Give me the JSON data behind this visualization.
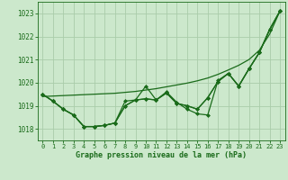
{
  "xlabel": "Graphe pression niveau de la mer (hPa)",
  "ylim": [
    1017.5,
    1023.5
  ],
  "xlim": [
    -0.5,
    23.5
  ],
  "yticks": [
    1018,
    1019,
    1020,
    1021,
    1022,
    1023
  ],
  "xticks": [
    0,
    1,
    2,
    3,
    4,
    5,
    6,
    7,
    8,
    9,
    10,
    11,
    12,
    13,
    14,
    15,
    16,
    17,
    18,
    19,
    20,
    21,
    22,
    23
  ],
  "bg_color": "#cce8cc",
  "grid_color": "#aaccaa",
  "line_color": "#1a6b1a",
  "line_straight": [
    1019.4,
    1019.42,
    1019.44,
    1019.46,
    1019.48,
    1019.5,
    1019.52,
    1019.54,
    1019.58,
    1019.62,
    1019.68,
    1019.74,
    1019.82,
    1019.9,
    1019.98,
    1020.08,
    1020.2,
    1020.36,
    1020.55,
    1020.75,
    1021.0,
    1021.4,
    1022.1,
    1023.1
  ],
  "line_a": [
    1019.5,
    1019.2,
    1018.85,
    1018.6,
    1018.1,
    1018.1,
    1018.15,
    1018.25,
    1019.2,
    1019.25,
    1019.85,
    1019.25,
    1019.6,
    1019.15,
    1018.85,
    1018.65,
    1018.6,
    1020.1,
    1020.4,
    1019.85,
    1020.6,
    1021.3,
    1022.3,
    1023.1
  ],
  "line_b": [
    1019.5,
    1019.2,
    1018.85,
    1018.6,
    1018.1,
    1018.1,
    1018.15,
    1018.25,
    1019.0,
    1019.25,
    1019.3,
    1019.25,
    1019.55,
    1019.1,
    1019.0,
    1018.85,
    1019.35,
    1020.05,
    1020.4,
    1019.85,
    1020.6,
    1021.3,
    1022.3,
    1023.1
  ],
  "line_c": [
    1019.5,
    1019.2,
    1018.85,
    1018.6,
    1018.1,
    1018.1,
    1018.15,
    1018.25,
    1019.0,
    1019.25,
    1019.3,
    1019.25,
    1019.55,
    1019.1,
    1019.0,
    1018.85,
    1019.35,
    1020.05,
    1020.4,
    1019.85,
    1020.6,
    1021.3,
    1022.3,
    1023.1
  ]
}
